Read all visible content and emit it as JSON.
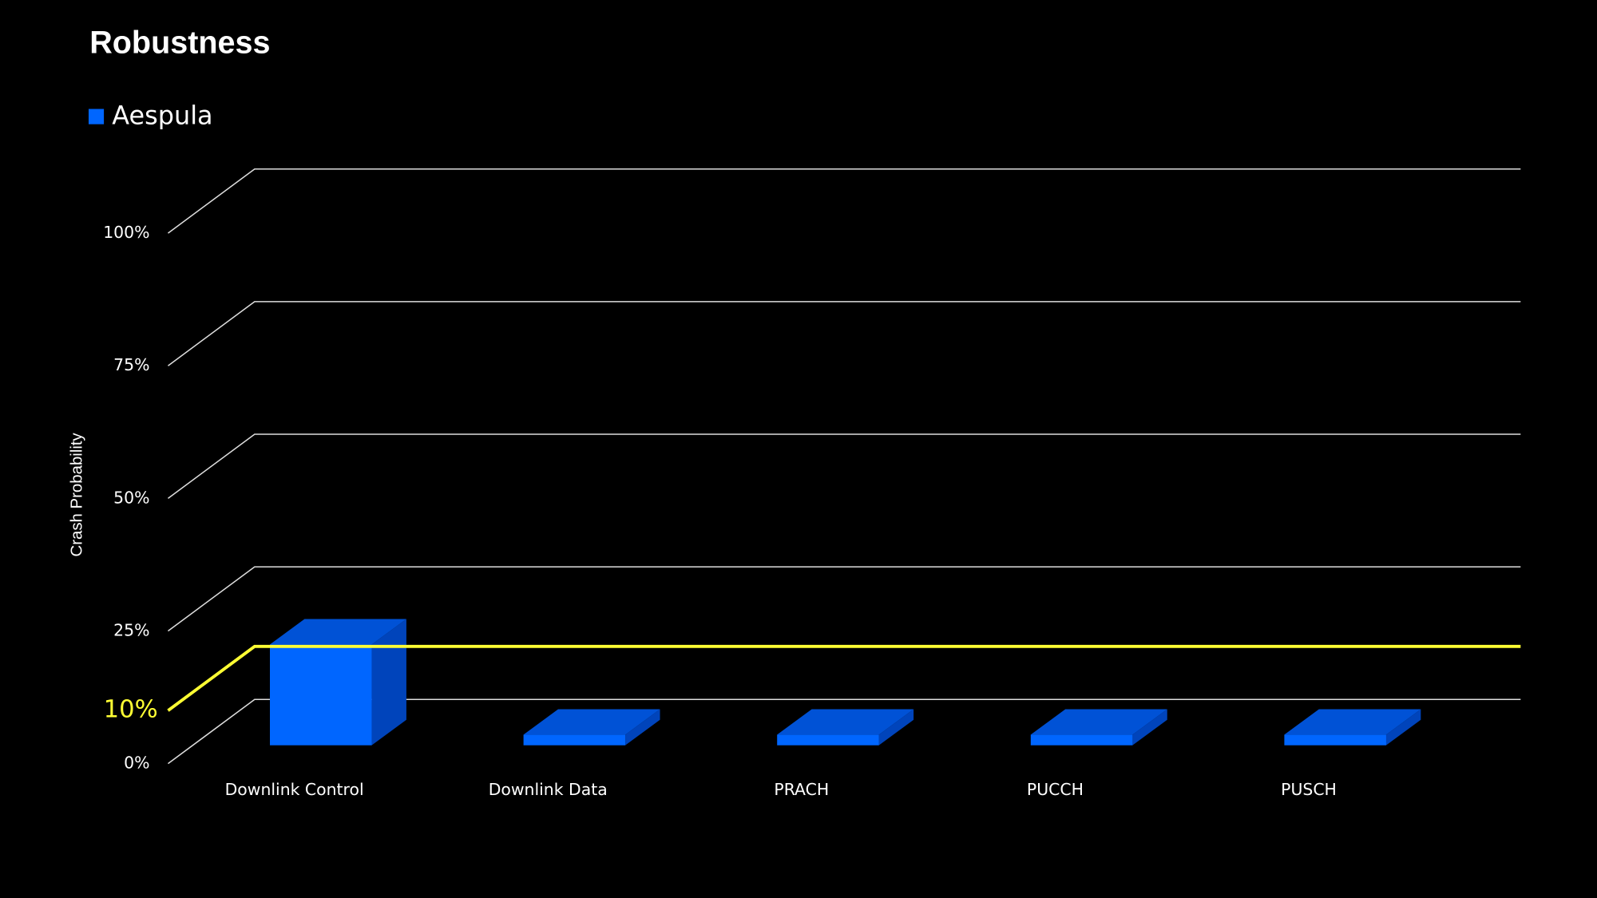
{
  "chart_data": {
    "type": "bar3d",
    "title": "Robustness",
    "y_label": "Crash Probability",
    "categories": [
      "Downlink Control",
      "Downlink Data",
      "PRACH",
      "PUCCH",
      "PUSCH"
    ],
    "series": [
      {
        "name": "Aespula",
        "color": "#0066ff",
        "values": [
          19,
          2,
          2,
          2,
          2
        ]
      }
    ],
    "ylim": [
      0,
      100
    ],
    "yticks": [
      {
        "value": 0,
        "label": "0%"
      },
      {
        "value": 25,
        "label": "25%"
      },
      {
        "value": 50,
        "label": "50%"
      },
      {
        "value": 75,
        "label": "75%"
      },
      {
        "value": 100,
        "label": "100%"
      }
    ],
    "threshold": {
      "value": 10,
      "label": "10%",
      "color": "#ffff33"
    },
    "grid": true
  }
}
